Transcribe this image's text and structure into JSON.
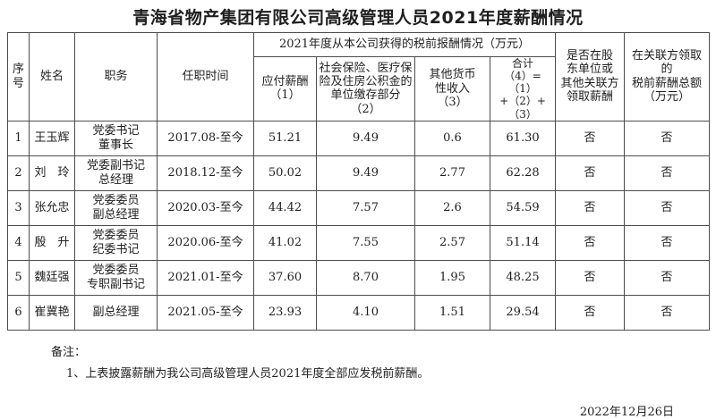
{
  "page": {
    "title": "青海省物产集团有限公司高级管理人员2021年度薪酬情况",
    "date": "2022年12月26日"
  },
  "colors": {
    "border": "#4c4c4c",
    "text": "#1f1f1f",
    "background": "#ffffff"
  },
  "table": {
    "headers": {
      "seq": "序\n号",
      "name": "姓名",
      "position": "职务",
      "tenure": "任职时间",
      "income_group": "2021年度从本公司获得的税前报酬情况（万元）",
      "payable": "应付薪酬\n（1）",
      "insurance": "社会保险、医疗保\n险及住房公积金的\n单位缴存部分\n（2）",
      "other_income": "其他货币\n性收入\n（3）",
      "total": "合计\n（4）=（1）\n+（2）+\n（3）",
      "shareholder_pay": "是否在股\n东单位或\n其他关联方\n领取薪酬",
      "related_total": "在关联方领取的\n税前薪酬总额\n（万元）"
    },
    "rows": [
      [
        "1",
        "王玉辉",
        "党委书记\n董事长",
        "2017.08-至今",
        "51.21",
        "9.49",
        "0.6",
        "61.30",
        "否",
        "否"
      ],
      [
        "2",
        "刘　玲",
        "党委副书记\n总经理",
        "2018.12-至今",
        "50.02",
        "9.49",
        "2.77",
        "62.28",
        "否",
        "否"
      ],
      [
        "3",
        "张允忠",
        "党委委员\n副总经理",
        "2020.03-至今",
        "44.42",
        "7.57",
        "2.6",
        "54.59",
        "否",
        "否"
      ],
      [
        "4",
        "殷　升",
        "党委委员\n纪委书记",
        "2020.06-至今",
        "41.02",
        "7.55",
        "2.57",
        "51.14",
        "否",
        "否"
      ],
      [
        "5",
        "魏廷强",
        "党委委员\n专职副书记",
        "2021.01-至今",
        "37.60",
        "8.70",
        "1.95",
        "48.25",
        "否",
        "否"
      ],
      [
        "6",
        "崔冀艳",
        "副总经理",
        "2021.05-至今",
        "23.93",
        "4.10",
        "1.51",
        "29.54",
        "否",
        "否"
      ]
    ]
  },
  "notes": {
    "label": "备注：",
    "item1": "1、上表披露薪酬为我公司高级管理人员2021年度全部应发税前薪酬。"
  }
}
